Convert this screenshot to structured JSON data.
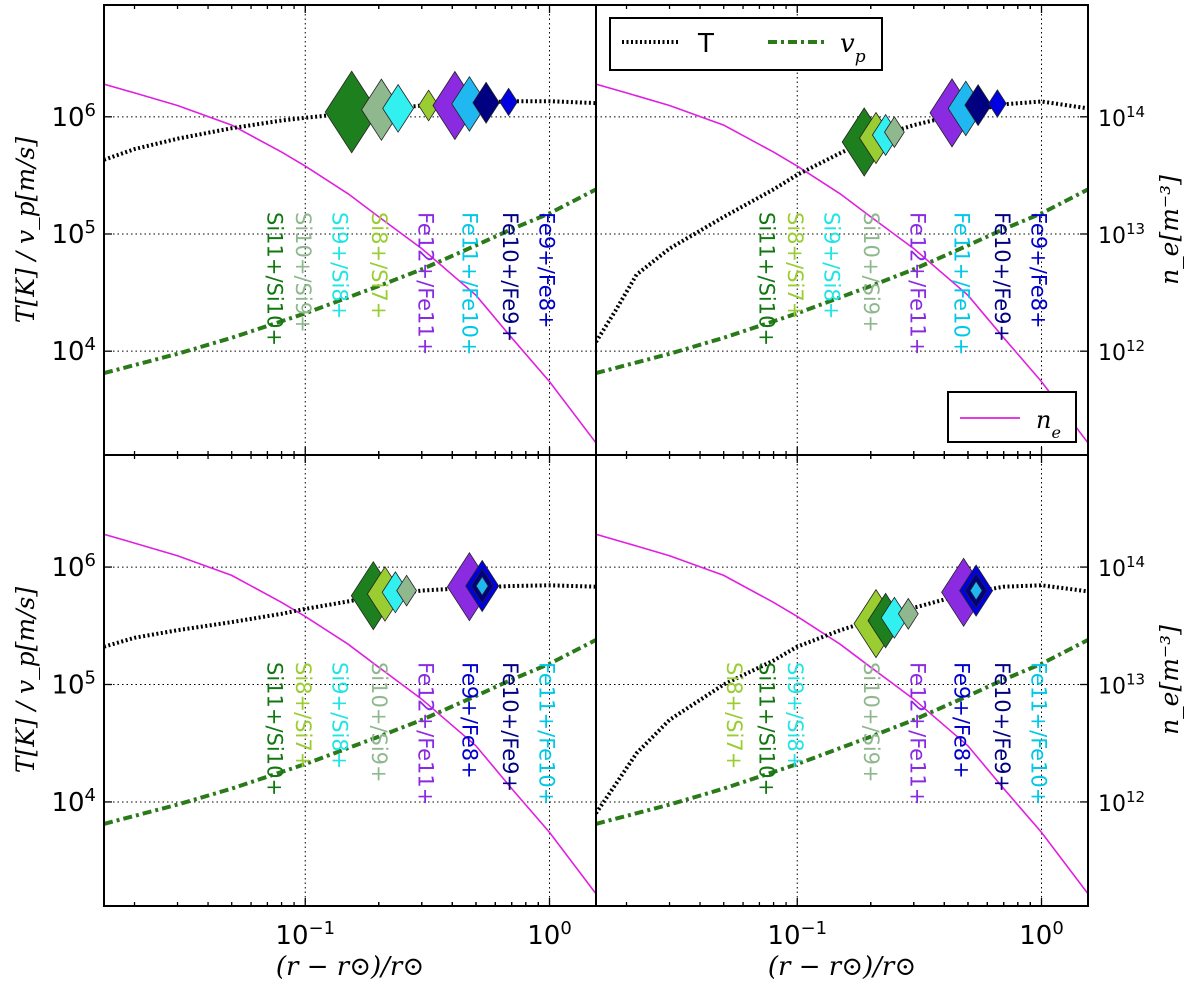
{
  "chart_data": {
    "type": "line",
    "xscale": "log",
    "y_left_scale": "log",
    "y_right_scale": "log",
    "xlim": [
      0.015,
      1.55
    ],
    "ylim_left": [
      1300,
      9000000
    ],
    "ylim_right": [
      130000000000,
      900000000000000
    ],
    "grid": true,
    "xlabel": "(r − r⊙)/r⊙",
    "ylabel_left": "T[K] / v_p[m/s]",
    "ylabel_right": "n_e[m⁻³]",
    "legend_top": {
      "placement": "top",
      "entries": [
        {
          "label": "T",
          "style": "dotted",
          "color": "#000000"
        },
        {
          "label": "v_p",
          "style": "dashdot",
          "color": "#2a7a1a"
        }
      ]
    },
    "legend_ne": {
      "placement": "lower-right",
      "entries": [
        {
          "label": "n_e",
          "style": "solid",
          "color": "#e020e0"
        }
      ]
    },
    "x_ticks": [
      {
        "value": 0.1,
        "base": "10",
        "exp": "−1"
      },
      {
        "value": 1,
        "base": "10",
        "exp": "0"
      }
    ],
    "y_left_ticks": [
      {
        "value": 10000,
        "base": "10",
        "exp": "4"
      },
      {
        "value": 100000,
        "base": "10",
        "exp": "5"
      },
      {
        "value": 1000000,
        "base": "10",
        "exp": "6"
      }
    ],
    "y_right_ticks": [
      {
        "value": 1000000000000,
        "base": "10",
        "exp": "12"
      },
      {
        "value": 10000000000000,
        "base": "10",
        "exp": "13"
      },
      {
        "value": 100000000000000,
        "base": "10",
        "exp": "14"
      }
    ],
    "n_e": {
      "color": "#e020e0",
      "points": [
        [
          0.015,
          190000000000000.0
        ],
        [
          0.02,
          160000000000000.0
        ],
        [
          0.03,
          125000000000000.0
        ],
        [
          0.05,
          85000000000000.0
        ],
        [
          0.08,
          50000000000000.0
        ],
        [
          0.1,
          38000000000000.0
        ],
        [
          0.15,
          22000000000000.0
        ],
        [
          0.2,
          14000000000000.0
        ],
        [
          0.3,
          7500000000000.0
        ],
        [
          0.5,
          3000000000000.0
        ],
        [
          0.7,
          1300000000000.0
        ],
        [
          1.0,
          550000000000.0
        ],
        [
          1.55,
          165000000000.0
        ]
      ]
    },
    "v_p": {
      "color": "#2a7a1a",
      "points": [
        [
          0.015,
          6500
        ],
        [
          0.03,
          9500
        ],
        [
          0.05,
          13000
        ],
        [
          0.1,
          21000
        ],
        [
          0.2,
          36000
        ],
        [
          0.3,
          50000
        ],
        [
          0.5,
          80000
        ],
        [
          0.7,
          110000
        ],
        [
          1.0,
          150000
        ],
        [
          1.55,
          240000
        ]
      ]
    },
    "panels": [
      {
        "id": "top-left",
        "T": [
          [
            0.015,
            430000
          ],
          [
            0.02,
            530000
          ],
          [
            0.03,
            650000
          ],
          [
            0.05,
            800000
          ],
          [
            0.08,
            930000
          ],
          [
            0.1,
            980000
          ],
          [
            0.15,
            1070000
          ],
          [
            0.2,
            1150000
          ],
          [
            0.3,
            1250000
          ],
          [
            0.5,
            1320000
          ],
          [
            0.7,
            1360000
          ],
          [
            1.0,
            1360000
          ],
          [
            1.55,
            1310000
          ]
        ],
        "markers": [
          {
            "x": 0.155,
            "y": 1100000,
            "size": 2.4,
            "color": "#1e7f1e"
          },
          {
            "x": 0.205,
            "y": 1150000,
            "size": 1.8,
            "color": "#8fb88f"
          },
          {
            "x": 0.24,
            "y": 1180000,
            "size": 1.4,
            "color": "#33f0f0"
          },
          {
            "x": 0.32,
            "y": 1250000,
            "size": 0.9,
            "color": "#9acd32"
          },
          {
            "x": 0.41,
            "y": 1250000,
            "size": 2.0,
            "color": "#8a2be2"
          },
          {
            "x": 0.47,
            "y": 1290000,
            "size": 1.6,
            "color": "#20b8f0"
          },
          {
            "x": 0.55,
            "y": 1320000,
            "size": 1.2,
            "color": "#000080"
          },
          {
            "x": 0.68,
            "y": 1340000,
            "size": 0.8,
            "color": "#0000e0"
          }
        ],
        "labels": [
          {
            "text": "Si11+/Si10+",
            "x": 0.075,
            "color": "#117711"
          },
          {
            "text": "Si10+/Si9+",
            "x": 0.098,
            "color": "#8fb88f"
          },
          {
            "text": "Si9+/Si8+",
            "x": 0.138,
            "color": "#22e4e4"
          },
          {
            "text": "Si8+/Si7+",
            "x": 0.2,
            "color": "#9acd32"
          },
          {
            "text": "Fe12+/Fe11+",
            "x": 0.31,
            "color": "#8a2be2"
          },
          {
            "text": "Fe11+/Fe10+",
            "x": 0.47,
            "color": "#00c8e6"
          },
          {
            "text": "Fe10+/Fe9+",
            "x": 0.69,
            "color": "#000080"
          },
          {
            "text": "Fe9+/Fe8+",
            "x": 0.97,
            "color": "#0000cd"
          }
        ]
      },
      {
        "id": "top-right",
        "T": [
          [
            0.015,
            12000
          ],
          [
            0.018,
            22000
          ],
          [
            0.022,
            45000
          ],
          [
            0.03,
            75000
          ],
          [
            0.05,
            140000
          ],
          [
            0.08,
            240000
          ],
          [
            0.1,
            320000
          ],
          [
            0.15,
            490000
          ],
          [
            0.2,
            650000
          ],
          [
            0.3,
            850000
          ],
          [
            0.5,
            1100000
          ],
          [
            0.7,
            1280000
          ],
          [
            1.0,
            1350000
          ],
          [
            1.55,
            1180000
          ]
        ],
        "markers": [
          {
            "x": 0.188,
            "y": 610000,
            "size": 2.0,
            "color": "#1e7f1e"
          },
          {
            "x": 0.21,
            "y": 660000,
            "size": 1.5,
            "color": "#9acd32"
          },
          {
            "x": 0.23,
            "y": 700000,
            "size": 1.2,
            "color": "#33f0f0"
          },
          {
            "x": 0.25,
            "y": 740000,
            "size": 0.9,
            "color": "#8fb88f"
          },
          {
            "x": 0.43,
            "y": 1080000,
            "size": 2.0,
            "color": "#8a2be2"
          },
          {
            "x": 0.49,
            "y": 1180000,
            "size": 1.6,
            "color": "#20b8f0"
          },
          {
            "x": 0.55,
            "y": 1260000,
            "size": 1.2,
            "color": "#000080"
          },
          {
            "x": 0.66,
            "y": 1300000,
            "size": 0.8,
            "color": "#0000e0"
          }
        ],
        "labels": [
          {
            "text": "Si11+/Si10+",
            "x": 0.075,
            "color": "#117711"
          },
          {
            "text": "Si8+/Si7+",
            "x": 0.098,
            "color": "#9acd32"
          },
          {
            "text": "Si9+/Si8+",
            "x": 0.138,
            "color": "#22e4e4"
          },
          {
            "text": "Si10+/Si9+",
            "x": 0.2,
            "color": "#8fb88f"
          },
          {
            "text": "Fe12+/Fe11+",
            "x": 0.31,
            "color": "#8a2be2"
          },
          {
            "text": "Fe11+/Fe10+",
            "x": 0.47,
            "color": "#00c8e6"
          },
          {
            "text": "Fe10+/Fe9+",
            "x": 0.69,
            "color": "#000080"
          },
          {
            "text": "Fe9+/Fe8+",
            "x": 0.97,
            "color": "#0000cd"
          }
        ]
      },
      {
        "id": "bottom-left",
        "T": [
          [
            0.015,
            210000
          ],
          [
            0.02,
            250000
          ],
          [
            0.03,
            290000
          ],
          [
            0.05,
            340000
          ],
          [
            0.08,
            400000
          ],
          [
            0.1,
            440000
          ],
          [
            0.15,
            510000
          ],
          [
            0.2,
            570000
          ],
          [
            0.3,
            630000
          ],
          [
            0.5,
            670000
          ],
          [
            0.7,
            690000
          ],
          [
            1.0,
            700000
          ],
          [
            1.55,
            680000
          ]
        ],
        "markers": [
          {
            "x": 0.19,
            "y": 570000,
            "size": 2.0,
            "color": "#1e7f1e"
          },
          {
            "x": 0.212,
            "y": 590000,
            "size": 1.6,
            "color": "#9acd32"
          },
          {
            "x": 0.234,
            "y": 610000,
            "size": 1.2,
            "color": "#33f0f0"
          },
          {
            "x": 0.26,
            "y": 630000,
            "size": 0.9,
            "color": "#8fb88f"
          },
          {
            "x": 0.47,
            "y": 680000,
            "size": 2.0,
            "color": "#8a2be2"
          },
          {
            "x": 0.53,
            "y": 690000,
            "size": 1.5,
            "color": "#0000e0"
          },
          {
            "x": 0.53,
            "y": 690000,
            "size": 1.0,
            "color": "#000080"
          },
          {
            "x": 0.53,
            "y": 690000,
            "size": 0.55,
            "color": "#20b8f0"
          }
        ],
        "labels": [
          {
            "text": "Si11+/Si10+",
            "x": 0.075,
            "color": "#117711"
          },
          {
            "text": "Si8+/Si7+",
            "x": 0.098,
            "color": "#9acd32"
          },
          {
            "text": "Si9+/Si8+",
            "x": 0.138,
            "color": "#22e4e4"
          },
          {
            "text": "Si10+/Si9+",
            "x": 0.2,
            "color": "#8fb88f"
          },
          {
            "text": "Fe12+/Fe11+",
            "x": 0.31,
            "color": "#8a2be2"
          },
          {
            "text": "Fe9+/Fe8+",
            "x": 0.47,
            "color": "#0000cd"
          },
          {
            "text": "Fe10+/Fe9+",
            "x": 0.69,
            "color": "#000080"
          },
          {
            "text": "Fe11+/Fe10+",
            "x": 0.97,
            "color": "#00c8e6"
          }
        ]
      },
      {
        "id": "bottom-right",
        "T": [
          [
            0.015,
            8000
          ],
          [
            0.018,
            14000
          ],
          [
            0.022,
            26000
          ],
          [
            0.03,
            50000
          ],
          [
            0.05,
            100000
          ],
          [
            0.08,
            160000
          ],
          [
            0.1,
            210000
          ],
          [
            0.15,
            290000
          ],
          [
            0.2,
            350000
          ],
          [
            0.3,
            450000
          ],
          [
            0.5,
            600000
          ],
          [
            0.7,
            680000
          ],
          [
            1.0,
            700000
          ],
          [
            1.55,
            620000
          ]
        ],
        "markers": [
          {
            "x": 0.21,
            "y": 330000,
            "size": 2.0,
            "color": "#9acd32"
          },
          {
            "x": 0.23,
            "y": 350000,
            "size": 1.6,
            "color": "#1e7f1e"
          },
          {
            "x": 0.25,
            "y": 370000,
            "size": 1.2,
            "color": "#33f0f0"
          },
          {
            "x": 0.285,
            "y": 400000,
            "size": 0.9,
            "color": "#8fb88f"
          },
          {
            "x": 0.48,
            "y": 610000,
            "size": 2.0,
            "color": "#8a2be2"
          },
          {
            "x": 0.54,
            "y": 630000,
            "size": 1.5,
            "color": "#0000e0"
          },
          {
            "x": 0.54,
            "y": 630000,
            "size": 1.0,
            "color": "#000080"
          },
          {
            "x": 0.54,
            "y": 630000,
            "size": 0.55,
            "color": "#20b8f0"
          }
        ],
        "labels": [
          {
            "text": "Si8+/Si7+",
            "x": 0.055,
            "color": "#9acd32"
          },
          {
            "text": "Si11+/Si10+",
            "x": 0.075,
            "color": "#117711"
          },
          {
            "text": "Si9+/Si8+",
            "x": 0.098,
            "color": "#22e4e4"
          },
          {
            "text": "Si10+/Si9+",
            "x": 0.2,
            "color": "#8fb88f"
          },
          {
            "text": "Fe12+/Fe11+",
            "x": 0.31,
            "color": "#8a2be2"
          },
          {
            "text": "Fe9+/Fe8+",
            "x": 0.47,
            "color": "#0000cd"
          },
          {
            "text": "Fe10+/Fe9+",
            "x": 0.69,
            "color": "#000080"
          },
          {
            "text": "Fe11+/Fe10+",
            "x": 0.97,
            "color": "#00c8e6"
          }
        ]
      }
    ]
  }
}
